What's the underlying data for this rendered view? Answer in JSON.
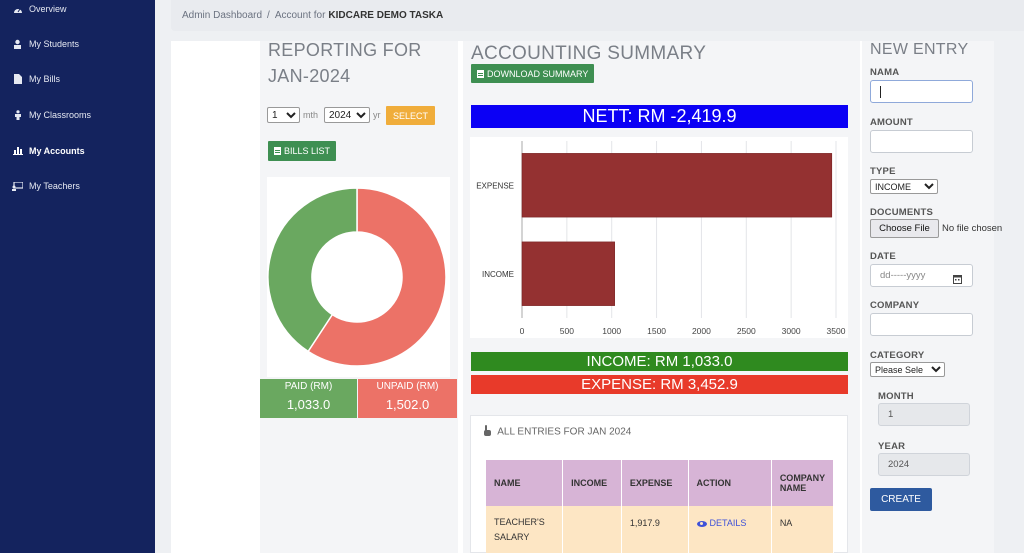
{
  "sidebar": {
    "items": [
      {
        "label": "Overview",
        "icon": "dashboard-icon"
      },
      {
        "label": "My Students",
        "icon": "graduate-icon"
      },
      {
        "label": "My Bills",
        "icon": "file-icon"
      },
      {
        "label": "My Classrooms",
        "icon": "person-icon"
      },
      {
        "label": "My Accounts",
        "icon": "bar-chart-icon"
      },
      {
        "label": "My Teachers",
        "icon": "presentation-icon"
      }
    ]
  },
  "breadcrumb": {
    "root": "Admin Dashboard",
    "separator": "/",
    "current_prefix": "Account for",
    "current_name": "KIDCARE DEMO TASKA"
  },
  "reporting": {
    "title_line1": "REPORTING FOR",
    "title_line2": "JAN-2024",
    "month_value": "1",
    "month_suffix": "mth",
    "year_value": "2024",
    "year_suffix": "yr",
    "select_label": "SELECT",
    "bills_list_label": "BILLS LIST",
    "paid_label": "PAID (RM)",
    "paid_value": "1,033.0",
    "unpaid_label": "UNPAID (RM)",
    "unpaid_value": "1,502.0",
    "donut": {
      "paid": 1033.0,
      "unpaid": 1502.0,
      "paid_color": "#6aa860",
      "unpaid_color": "#ec7267"
    }
  },
  "summary": {
    "title": "ACCOUNTING SUMMARY",
    "download_label": "DOWNLOAD SUMMARY",
    "nett_label": "NETT: RM -2,419.9",
    "income_label": "INCOME: RM 1,033.0",
    "expense_label": "EXPENSE: RM 3,452.9",
    "colors": {
      "nett": "#0b00f5",
      "income": "#2f8a1f",
      "expense": "#e83a2a",
      "bar": "#943131"
    }
  },
  "chart_data": {
    "type": "bar",
    "orientation": "horizontal",
    "categories": [
      "EXPENSE",
      "INCOME"
    ],
    "values": [
      3452.9,
      1033.0
    ],
    "xlim": [
      0,
      3500
    ],
    "xticks": [
      0,
      500,
      1000,
      1500,
      2000,
      2500,
      3000,
      3500
    ],
    "grid": true
  },
  "entries": {
    "heading": "ALL ENTRIES FOR JAN 2024",
    "columns": [
      "NAME",
      "INCOME",
      "EXPENSE",
      "ACTION",
      "COMPANY NAME"
    ],
    "rows": [
      {
        "name": "TEACHER'S SALARY",
        "income": "",
        "expense": "1,917.9",
        "action": "DETAILS",
        "company": "NA"
      }
    ]
  },
  "new_entry": {
    "title": "NEW ENTRY",
    "nama_label": "NAMA",
    "amount_label": "AMOUNT",
    "type_label": "TYPE",
    "type_value": "INCOME",
    "documents_label": "DOCUMENTS",
    "choose_file_label": "Choose File",
    "no_file_label": "No file chosen",
    "date_label": "DATE",
    "date_placeholder": "dd-----yyyy",
    "company_label": "COMPANY",
    "category_label": "CATEGORY",
    "category_value": "Please Sele",
    "month_label": "MONTH",
    "month_value": "1",
    "year_label": "YEAR",
    "year_value": "2024",
    "create_label": "CREATE"
  }
}
